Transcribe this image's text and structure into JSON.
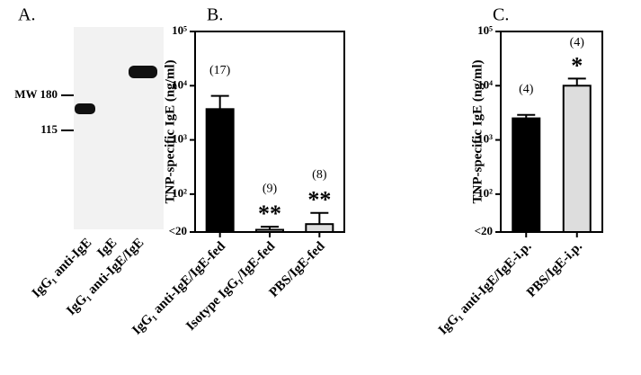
{
  "panel_a": {
    "label": "A.",
    "markers": [
      "MW 180",
      "115"
    ],
    "lanes": [
      "IgG₁ anti-IgE",
      "IgE",
      "IgG₁ anti-IgE/IgE"
    ]
  },
  "chart_data": [
    {
      "type": "bar",
      "panel": "B.",
      "y_label": "TNP-specific IgE (ng/ml)",
      "log_y": true,
      "categories": [
        "IgG₁ anti-IgE/IgE-fed",
        "Isotype IgG₁/IgE-fed",
        "PBS/IgE-fed"
      ],
      "values": [
        3700,
        22,
        28
      ],
      "errors": [
        2800,
        3,
        17
      ],
      "colors": [
        "#000000",
        "#dddddd",
        "#dddddd"
      ],
      "n_labels": [
        "(17)",
        "(9)",
        "(8)"
      ],
      "significance": [
        null,
        "**",
        "**"
      ],
      "ylim": [
        20,
        100000
      ],
      "yticks": [
        {
          "value": 20,
          "label": "<20"
        },
        {
          "value": 100,
          "label": "10²"
        },
        {
          "value": 1000,
          "label": "10³"
        },
        {
          "value": 10000,
          "label": "10⁴"
        },
        {
          "value": 100000,
          "label": "10⁵"
        }
      ]
    },
    {
      "type": "bar",
      "panel": "C.",
      "y_label": "TNP-specific IgE (ng/ml)",
      "log_y": true,
      "categories": [
        "IgG₁ anti-IgE/IgE-i.p.",
        "PBS/IgE-i.p."
      ],
      "values": [
        2500,
        10000
      ],
      "errors": [
        400,
        3500
      ],
      "colors": [
        "#000000",
        "#dddddd"
      ],
      "n_labels": [
        "(4)",
        "(4)"
      ],
      "significance": [
        null,
        "*"
      ],
      "ylim": [
        20,
        100000
      ],
      "yticks": [
        {
          "value": 20,
          "label": "<20"
        },
        {
          "value": 100,
          "label": "10²"
        },
        {
          "value": 1000,
          "label": "10³"
        },
        {
          "value": 10000,
          "label": "10⁴"
        },
        {
          "value": 100000,
          "label": "10⁵"
        }
      ]
    }
  ]
}
